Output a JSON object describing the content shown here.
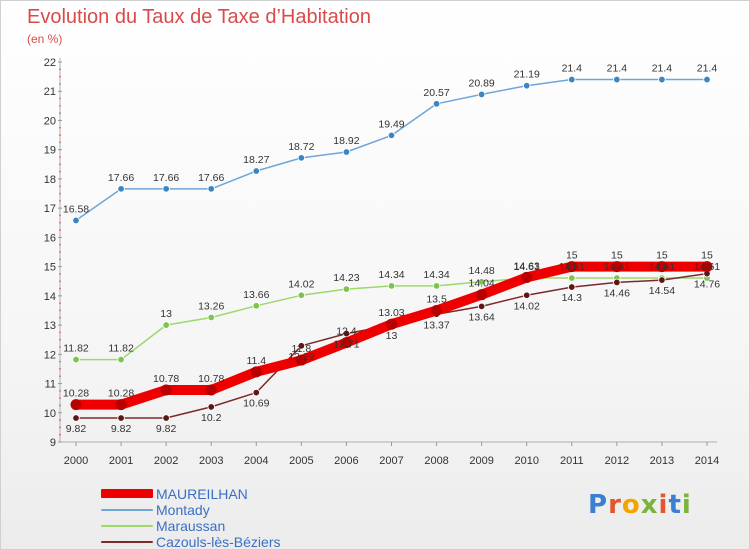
{
  "header": {
    "title": "Evolution du Taux de Taxe d’Habitation",
    "unit": "(en %)"
  },
  "logo": {
    "text": "Proxiti",
    "letter_colors": [
      "#3b7fd1",
      "#e4572e",
      "#f4a300",
      "#7bb43a",
      "#e4572e",
      "#3b7fd1",
      "#7bb43a"
    ]
  },
  "chart_data": {
    "type": "line",
    "title": "Evolution du Taux de Taxe d’Habitation",
    "ylabel": "(en %)",
    "xlabel": "",
    "x": [
      "2000",
      "2001",
      "2002",
      "2003",
      "2004",
      "2005",
      "2006",
      "2007",
      "2008",
      "2009",
      "2010",
      "2011",
      "2012",
      "2013",
      "2014"
    ],
    "ylim": [
      9,
      22
    ],
    "yticks": [
      "9",
      "10",
      "11",
      "12",
      "13",
      "14",
      "15",
      "16",
      "17",
      "18",
      "19",
      "20",
      "21",
      "22"
    ],
    "grid": false,
    "legend_position": "bottom-left",
    "series": [
      {
        "name": "MAUREILHAN",
        "color": "#ee0000",
        "marker_color": "#b80000",
        "values": [
          10.28,
          10.28,
          10.78,
          10.78,
          11.4,
          11.8,
          12.4,
          13.03,
          13.5,
          14.04,
          14.63,
          15,
          15,
          15,
          15
        ],
        "labels": [
          "10.28",
          "10.28",
          "10.78",
          "10.78",
          "11.4",
          "11.8",
          "12.4",
          "13.03",
          "13.5",
          "14.04",
          "14.63",
          "15",
          "15",
          "15",
          "15"
        ]
      },
      {
        "name": "Montady",
        "color": "#6ea6d8",
        "marker_color": "#3a86c4",
        "values": [
          16.58,
          17.66,
          17.66,
          17.66,
          18.27,
          18.72,
          18.92,
          19.49,
          20.57,
          20.89,
          21.19,
          21.4,
          21.4,
          21.4,
          21.4
        ],
        "labels": [
          "16.58",
          "17.66",
          "17.66",
          "17.66",
          "18.27",
          "18.72",
          "18.92",
          "19.49",
          "20.57",
          "20.89",
          "21.19",
          "21.4",
          "21.4",
          "21.4",
          "21.4"
        ]
      },
      {
        "name": "Maraussan",
        "color": "#9ed86b",
        "marker_color": "#7cc44e",
        "values": [
          11.82,
          11.82,
          13,
          13.26,
          13.66,
          14.02,
          14.23,
          14.34,
          14.34,
          14.48,
          14.61,
          14.61,
          14.61,
          14.61,
          14.61
        ],
        "labels": [
          "11.82",
          "11.82",
          "13",
          "13.26",
          "13.66",
          "14.02",
          "14.23",
          "14.34",
          "14.34",
          "14.48",
          "14.61",
          "14.61",
          "14.61",
          "14.61",
          "14.61"
        ]
      },
      {
        "name": "Cazouls-lès-Béziers",
        "color": "#7a2a2a",
        "marker_color": "#5e1515",
        "values": [
          9.82,
          9.82,
          9.82,
          10.2,
          10.69,
          12.29,
          12.71,
          13,
          13.37,
          13.64,
          14.02,
          14.3,
          14.46,
          14.54,
          14.76
        ],
        "labels": [
          "9.82",
          "9.82",
          "9.82",
          "10.2",
          "10.69",
          "12.29",
          "12.71",
          "13",
          "13.37",
          "13.64",
          "14.02",
          "14.3",
          "14.46",
          "14.54",
          "14.76"
        ]
      }
    ]
  }
}
